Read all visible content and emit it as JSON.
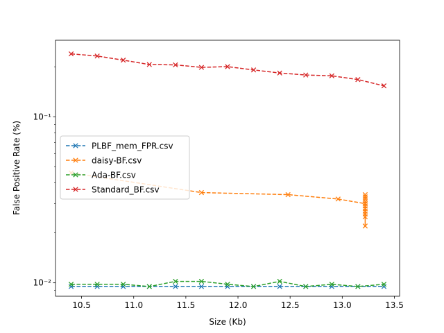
{
  "chart_data": {
    "type": "line",
    "xlabel": "Size (Kb)",
    "ylabel": "False Positive Rate (%)",
    "xlim": [
      10.25,
      13.55
    ],
    "ylim": [
      0.0083,
      0.29
    ],
    "yscale": "log",
    "xticks": [
      10.5,
      11.0,
      11.5,
      12.0,
      12.5,
      13.0,
      13.5
    ],
    "xtick_labels": [
      "10.5",
      "11.0",
      "11.5",
      "12.0",
      "12.5",
      "13.0",
      "13.5"
    ],
    "yticks": [
      0.1,
      0.01
    ],
    "ytick_labels": [
      "10⁻¹",
      "10⁻²"
    ],
    "grid": false,
    "legend_position": "center-left",
    "series": [
      {
        "name": "PLBF_mem_FPR.csv",
        "color": "#1f77b4",
        "x": [
          10.4,
          10.65,
          10.9,
          11.15,
          11.4,
          11.65,
          11.9,
          12.15,
          12.4,
          12.65,
          12.9,
          13.15,
          13.4
        ],
        "y": [
          0.0095,
          0.0095,
          0.0095,
          0.0095,
          0.0095,
          0.0095,
          0.0095,
          0.0095,
          0.0095,
          0.0095,
          0.0095,
          0.0095,
          0.0095
        ]
      },
      {
        "name": "daisy-BF.csv",
        "color": "#ff7f0e",
        "x": [
          10.4,
          11.65,
          12.48,
          12.96,
          13.22,
          13.22,
          13.22,
          13.22,
          13.22,
          13.22,
          13.22,
          13.22,
          13.22,
          13.22,
          13.22,
          13.22
        ],
        "y": [
          0.046,
          0.035,
          0.034,
          0.032,
          0.03,
          0.022,
          0.025,
          0.026,
          0.027,
          0.028,
          0.029,
          0.03,
          0.031,
          0.032,
          0.033,
          0.034
        ]
      },
      {
        "name": "Ada-BF.csv",
        "color": "#2ca02c",
        "x": [
          10.4,
          10.65,
          10.9,
          11.15,
          11.4,
          11.65,
          11.9,
          12.15,
          12.4,
          12.65,
          12.9,
          13.15,
          13.4
        ],
        "y": [
          0.0098,
          0.0098,
          0.0098,
          0.0095,
          0.0102,
          0.0102,
          0.0098,
          0.0095,
          0.0102,
          0.0095,
          0.0098,
          0.0095,
          0.0098
        ]
      },
      {
        "name": "Standard_BF.csv",
        "color": "#d62728",
        "x": [
          10.4,
          10.65,
          10.9,
          11.15,
          11.4,
          11.65,
          11.9,
          12.15,
          12.4,
          12.65,
          12.9,
          13.15,
          13.4
        ],
        "y": [
          0.24,
          0.233,
          0.22,
          0.207,
          0.206,
          0.199,
          0.201,
          0.192,
          0.184,
          0.179,
          0.177,
          0.168,
          0.154
        ]
      }
    ]
  }
}
